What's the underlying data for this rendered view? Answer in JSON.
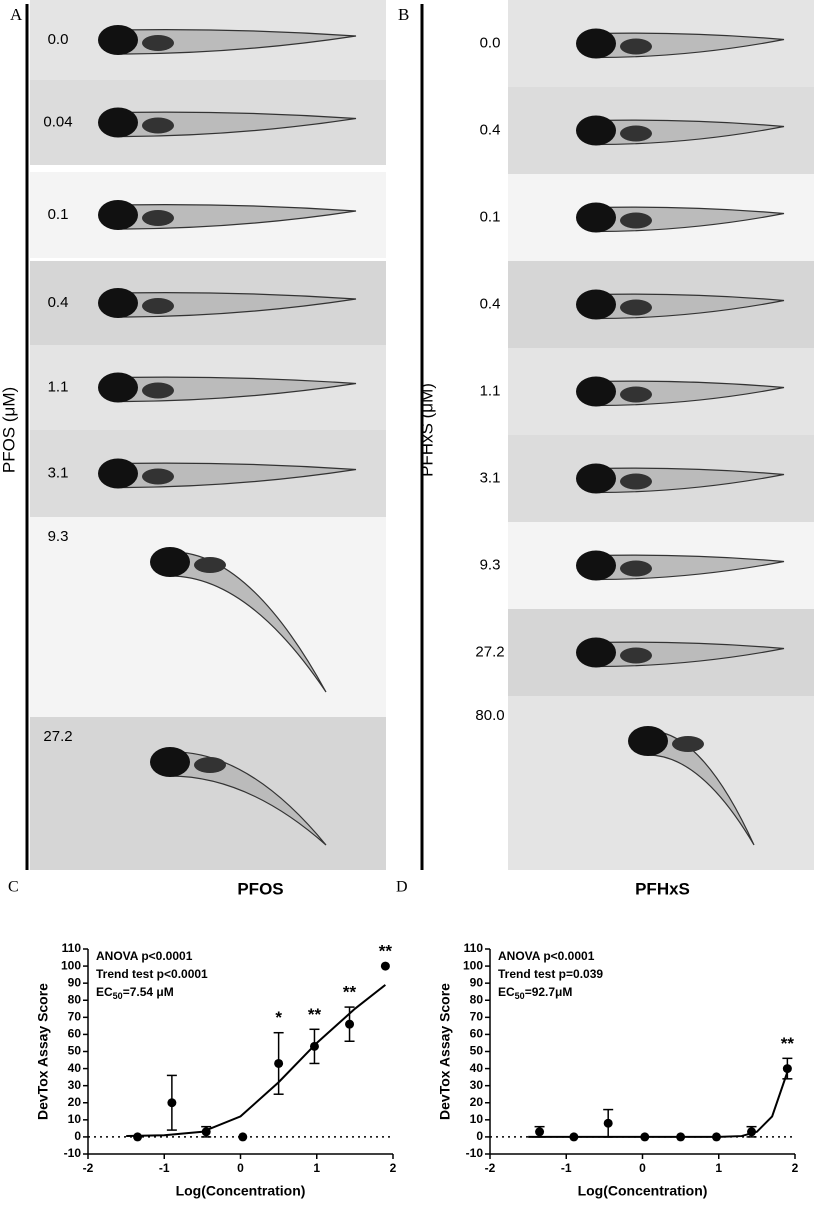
{
  "panels": [
    {
      "label": "A",
      "axis_label": "PFOS (μM)",
      "concentrations": [
        "0.0",
        "0.04",
        "0.1",
        "0.4",
        "1.1",
        "3.1",
        "9.3",
        "27.2"
      ]
    },
    {
      "label": "B",
      "axis_label": "PFHxS (μM)",
      "concentrations": [
        "0.0",
        "0.4",
        "0.1",
        "0.4",
        "1.1",
        "3.1",
        "9.3",
        "27.2",
        "80.0"
      ]
    }
  ],
  "chart_data": [
    {
      "type": "scatter",
      "panel_label": "C",
      "title": "PFOS",
      "x_label": "Log(Concentration)",
      "y_label": "DevTox Assay Score",
      "annotations": [
        "ANOVA p<0.0001",
        "Trend test p<0.0001"
      ],
      "ec50": {
        "prefix": "EC",
        "subscript": "50",
        "text": "=7.54 μM"
      },
      "series": [
        {
          "color": "#000000",
          "x": [
            -1.35,
            -0.9,
            -0.45,
            0.03,
            0.5,
            0.97,
            1.43,
            1.9
          ],
          "values": [
            0,
            20,
            3,
            0,
            43,
            53,
            66,
            100
          ],
          "errors": [
            0,
            16,
            3,
            0,
            18,
            10,
            10,
            0
          ],
          "significance": [
            null,
            null,
            null,
            null,
            "*",
            "**",
            "**",
            "**"
          ]
        }
      ],
      "fit": {
        "x": [
          -1.5,
          -1,
          -0.5,
          0,
          0.5,
          1,
          1.5,
          1.9
        ],
        "values": [
          0.5,
          1,
          3,
          12,
          32,
          55,
          75,
          89
        ]
      },
      "xlim": [
        -2,
        2
      ],
      "xticks": [
        -2,
        -1,
        0,
        1,
        2
      ],
      "ylim": [
        -10,
        110
      ],
      "yticks": [
        -10,
        0,
        10,
        20,
        30,
        40,
        50,
        60,
        70,
        80,
        90,
        100,
        110
      ],
      "zero_line": true
    },
    {
      "type": "scatter",
      "panel_label": "D",
      "title": "PFHxS",
      "x_label": "Log(Concentration)",
      "y_label": "DevTox Assay Score",
      "annotations": [
        "ANOVA p<0.0001",
        "Trend test p=0.039"
      ],
      "ec50": {
        "prefix": "EC",
        "subscript": "50",
        "text": "=92.7μM"
      },
      "series": [
        {
          "color": "#000000",
          "x": [
            -1.35,
            -0.9,
            -0.45,
            0.03,
            0.5,
            0.97,
            1.43,
            1.9
          ],
          "values": [
            3,
            0,
            8,
            0,
            0,
            0,
            3,
            40
          ],
          "errors": [
            3,
            0,
            8,
            0,
            0,
            0,
            3,
            6
          ],
          "significance": [
            null,
            null,
            null,
            null,
            null,
            null,
            null,
            "**"
          ]
        }
      ],
      "fit": {
        "x": [
          -1.5,
          -1,
          0,
          1,
          1.3,
          1.5,
          1.7,
          1.9
        ],
        "values": [
          0,
          0,
          0,
          0,
          0.5,
          3,
          12,
          38
        ]
      },
      "xlim": [
        -2,
        2
      ],
      "xticks": [
        -2,
        -1,
        0,
        1,
        2
      ],
      "ylim": [
        -10,
        110
      ],
      "yticks": [
        -10,
        0,
        10,
        20,
        30,
        40,
        50,
        60,
        70,
        80,
        90,
        100,
        110
      ],
      "zero_line": true
    }
  ]
}
